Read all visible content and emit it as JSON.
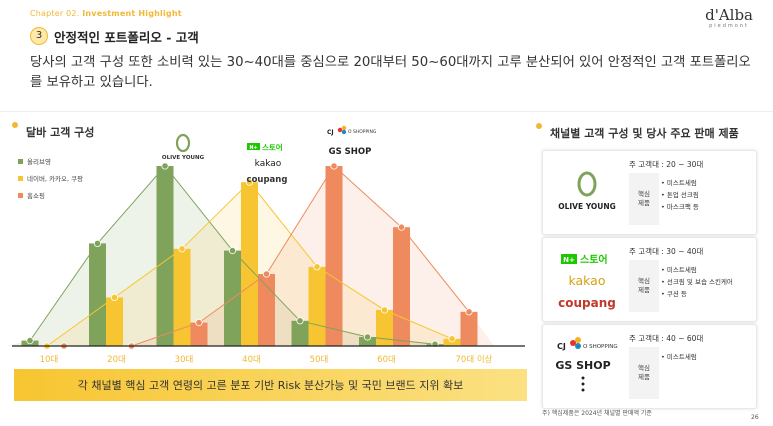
{
  "header": {
    "chapter_prefix": "Chapter 02.",
    "chapter_title": "Investment Highlight",
    "brand_logo": "d'Alba",
    "brand_sub": "piedmont",
    "section_number": "3",
    "section_title": "안정적인 포트폴리오 - 고객"
  },
  "lead_text": "당사의 고객 구성 또한 소비력 있는 30~40대를 중심으로 20대부터 50~60대까지 고루 분산되어 있어 안정적인 고객 포트폴리오를 보유하고 있습니다.",
  "left_panel": {
    "title": "달바 고객 구성",
    "banner": "각 채널별 핵심 고객 연령의 고른 분포 기반 Risk 분산가능 및 국민 브랜드 지위 확보"
  },
  "brands": {
    "olive_young": "OLIVE YOUNG",
    "naver_store": "스토어",
    "naver_badge": "N+",
    "kakao": "kakao",
    "coupang": "coupang",
    "cj": "CJ",
    "oshopping": "O SHOPPING",
    "gs_shop": "GS SHOP"
  },
  "colors": {
    "accent": "#f2b833",
    "olive": "#7fa35a",
    "yellow": "#f7c531",
    "orange": "#ee8a5e"
  },
  "chart_data": {
    "type": "bar",
    "categories": [
      "10대",
      "20대",
      "30대",
      "40대",
      "50대",
      "60대",
      "70대 이상"
    ],
    "series": [
      {
        "name": "올리브영",
        "values": [
          3,
          57,
          100,
          53,
          14,
          5,
          1
        ]
      },
      {
        "name": "네이버, 카카오, 쿠팡",
        "values": [
          0,
          27,
          54,
          91,
          44,
          20,
          4
        ]
      },
      {
        "name": "홈쇼핑",
        "values": [
          0,
          0,
          13,
          40,
          100,
          66,
          19
        ]
      }
    ],
    "ylim": [
      0,
      100
    ]
  },
  "right_panel": {
    "title": "채널별 고객 구성 및 당사 주요 판매 제품",
    "core_label": "핵심\n제품",
    "cards": [
      {
        "age": "주 고객대 : 20 ~ 30대",
        "products": [
          "미스트세럼",
          "톤업 선크림",
          "마스크팩 등"
        ]
      },
      {
        "age": "주 고객대 : 30 ~ 40대",
        "products": [
          "미스트세럼",
          "선크림 및 보습 스킨케어",
          "쿠션 등"
        ]
      },
      {
        "age": "주 고객대 : 40 ~ 60대",
        "products": [
          "미스트세럼"
        ]
      }
    ]
  },
  "footnote": "주) 핵심제품은 2024년 채널별 판매액 기준",
  "page_number": "26"
}
